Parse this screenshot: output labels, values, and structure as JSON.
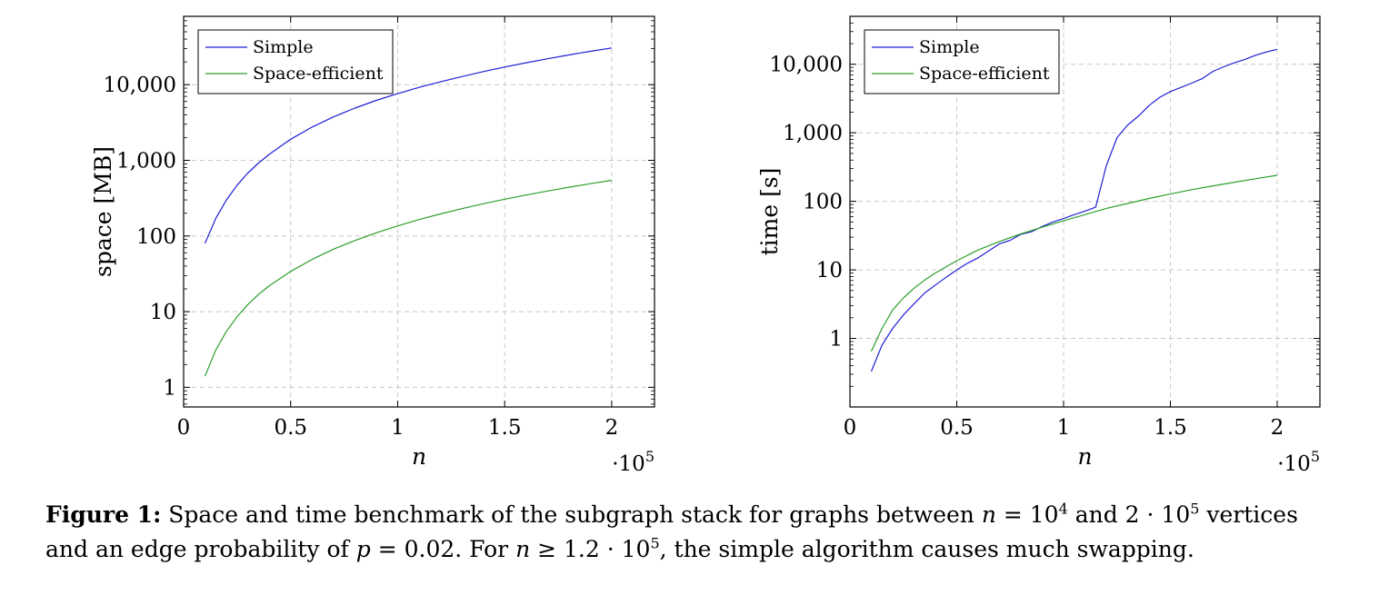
{
  "chart_data": [
    {
      "type": "line",
      "xlabel": "n",
      "ylabel": "space [MB]",
      "x_scale_label": "10",
      "x_scale_exponent": "5",
      "xlim": [
        0,
        2.2
      ],
      "ylim": [
        0.55,
        80000
      ],
      "yscale": "log",
      "grid": true,
      "legend_position": "top-left",
      "x_ticks": [
        {
          "value": 0,
          "label": "0"
        },
        {
          "value": 0.5,
          "label": "0.5"
        },
        {
          "value": 1,
          "label": "1"
        },
        {
          "value": 1.5,
          "label": "1.5"
        },
        {
          "value": 2,
          "label": "2"
        }
      ],
      "y_ticks": [
        {
          "value": 1,
          "label": "1"
        },
        {
          "value": 10,
          "label": "10"
        },
        {
          "value": 100,
          "label": "100"
        },
        {
          "value": 1000,
          "label": "1,000"
        },
        {
          "value": 10000,
          "label": "10,000"
        }
      ],
      "series": [
        {
          "name": "Simple",
          "color": "#1f1fd6",
          "x": [
            0.1,
            0.15,
            0.2,
            0.25,
            0.3,
            0.35,
            0.4,
            0.5,
            0.6,
            0.7,
            0.8,
            0.9,
            1.0,
            1.1,
            1.2,
            1.3,
            1.4,
            1.5,
            1.6,
            1.7,
            1.8,
            1.9,
            2.0
          ],
          "y": [
            80,
            170,
            300,
            470,
            680,
            920,
            1200,
            1900,
            2750,
            3750,
            4900,
            6200,
            7600,
            9200,
            10900,
            12800,
            14900,
            17100,
            19500,
            22000,
            24700,
            27600,
            30600
          ]
        },
        {
          "name": "Space-efficient",
          "color": "#2ca02c",
          "x": [
            0.1,
            0.15,
            0.2,
            0.25,
            0.3,
            0.35,
            0.4,
            0.5,
            0.6,
            0.7,
            0.8,
            0.9,
            1.0,
            1.1,
            1.2,
            1.3,
            1.4,
            1.5,
            1.6,
            1.7,
            1.8,
            1.9,
            2.0
          ],
          "y": [
            1.4,
            3.1,
            5.5,
            8.6,
            12.4,
            16.9,
            22,
            34,
            49,
            67,
            87,
            110,
            136,
            165,
            196,
            230,
            267,
            306,
            348,
            393,
            441,
            491,
            545
          ]
        }
      ]
    },
    {
      "type": "line",
      "xlabel": "n",
      "ylabel": "time [s]",
      "x_scale_label": "10",
      "x_scale_exponent": "5",
      "xlim": [
        0,
        2.2
      ],
      "ylim": [
        0.1,
        50000
      ],
      "yscale": "log",
      "grid": true,
      "legend_position": "top-left",
      "x_ticks": [
        {
          "value": 0,
          "label": "0"
        },
        {
          "value": 0.5,
          "label": "0.5"
        },
        {
          "value": 1,
          "label": "1"
        },
        {
          "value": 1.5,
          "label": "1.5"
        },
        {
          "value": 2,
          "label": "2"
        }
      ],
      "y_ticks": [
        {
          "value": 1,
          "label": "1"
        },
        {
          "value": 10,
          "label": "10"
        },
        {
          "value": 100,
          "label": "100"
        },
        {
          "value": 1000,
          "label": "1,000"
        },
        {
          "value": 10000,
          "label": "10,000"
        }
      ],
      "series": [
        {
          "name": "Simple",
          "color": "#1f1fd6",
          "x": [
            0.1,
            0.15,
            0.2,
            0.25,
            0.3,
            0.35,
            0.4,
            0.45,
            0.5,
            0.55,
            0.6,
            0.65,
            0.7,
            0.75,
            0.8,
            0.85,
            0.9,
            0.95,
            1.0,
            1.05,
            1.1,
            1.15,
            1.2,
            1.25,
            1.3,
            1.35,
            1.4,
            1.45,
            1.5,
            1.55,
            1.6,
            1.65,
            1.7,
            1.75,
            1.8,
            1.85,
            1.9,
            1.95,
            2.0
          ],
          "y": [
            0.33,
            0.8,
            1.4,
            2.2,
            3.2,
            4.6,
            6,
            7.8,
            10,
            12.5,
            15,
            19,
            24,
            27,
            33,
            36,
            43,
            50,
            56,
            64,
            72,
            82,
            330,
            850,
            1300,
            1750,
            2500,
            3300,
            4000,
            4600,
            5300,
            6200,
            7900,
            9200,
            10500,
            11800,
            13600,
            15100,
            16500
          ]
        },
        {
          "name": "Space-efficient",
          "color": "#2ca02c",
          "x": [
            0.1,
            0.15,
            0.2,
            0.25,
            0.3,
            0.35,
            0.4,
            0.5,
            0.6,
            0.7,
            0.8,
            0.9,
            1.0,
            1.1,
            1.2,
            1.3,
            1.4,
            1.5,
            1.6,
            1.7,
            1.8,
            1.9,
            2.0
          ],
          "y": [
            0.65,
            1.4,
            2.6,
            3.9,
            5.4,
            7.1,
            9,
            13.6,
            19.5,
            26,
            33.5,
            42,
            52,
            64,
            79,
            93,
            110,
            128,
            148,
            168,
            190,
            214,
            240
          ]
        }
      ]
    }
  ],
  "caption": {
    "label": "Figure 1:",
    "line1_a": " Space and time benchmark of the subgraph stack for graphs between ",
    "n_var": "n",
    "eq": " = 10",
    "exp4": "4",
    "and_2": " and 2 · 10",
    "exp5a": "5",
    "line1_b": " vertices",
    "line2_a": "and an edge probability of ",
    "p_var": "p",
    "p_val": " = 0.02. For ",
    "n_var2": "n",
    "geq": " ≥ 1.2 · 10",
    "exp5b": "5",
    "line2_b": ", the simple algorithm causes much swapping."
  }
}
